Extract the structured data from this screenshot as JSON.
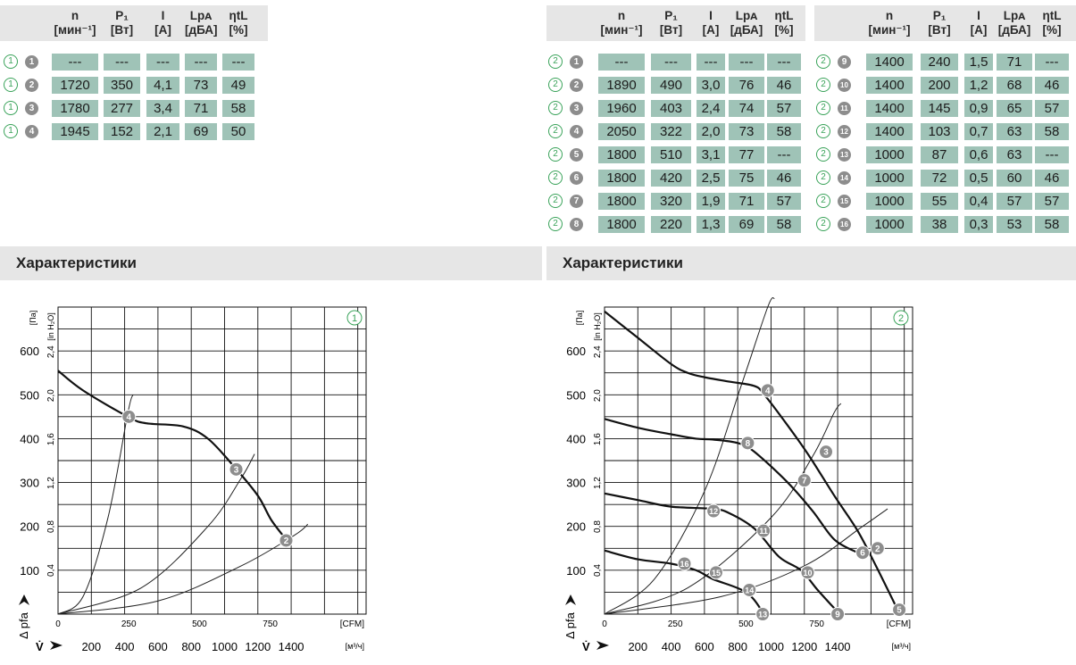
{
  "headers": [
    {
      "top": "n",
      "bottom": "[мин⁻¹]"
    },
    {
      "top": "P₁",
      "bottom": "[Вт]"
    },
    {
      "top": "I",
      "bottom": "[A]"
    },
    {
      "top": "Lpᴀ",
      "bottom": "[дБА]"
    },
    {
      "top": "ηtL",
      "bottom": "[%]"
    }
  ],
  "table1": {
    "rows": [
      {
        "curve": "1",
        "point": "1",
        "values": [
          "---",
          "---",
          "---",
          "---",
          "---"
        ]
      },
      {
        "curve": "1",
        "point": "2",
        "values": [
          "1720",
          "350",
          "4,1",
          "73",
          "49"
        ]
      },
      {
        "curve": "1",
        "point": "3",
        "values": [
          "1780",
          "277",
          "3,4",
          "71",
          "58"
        ]
      },
      {
        "curve": "1",
        "point": "4",
        "values": [
          "1945",
          "152",
          "2,1",
          "69",
          "50"
        ]
      }
    ]
  },
  "table2a": {
    "rows": [
      {
        "curve": "2",
        "point": "1",
        "values": [
          "---",
          "---",
          "---",
          "---",
          "---"
        ]
      },
      {
        "curve": "2",
        "point": "2",
        "values": [
          "1890",
          "490",
          "3,0",
          "76",
          "46"
        ]
      },
      {
        "curve": "2",
        "point": "3",
        "values": [
          "1960",
          "403",
          "2,4",
          "74",
          "57"
        ]
      },
      {
        "curve": "2",
        "point": "4",
        "values": [
          "2050",
          "322",
          "2,0",
          "73",
          "58"
        ]
      },
      {
        "curve": "2",
        "point": "5",
        "values": [
          "1800",
          "510",
          "3,1",
          "77",
          "---"
        ]
      },
      {
        "curve": "2",
        "point": "6",
        "values": [
          "1800",
          "420",
          "2,5",
          "75",
          "46"
        ]
      },
      {
        "curve": "2",
        "point": "7",
        "values": [
          "1800",
          "320",
          "1,9",
          "71",
          "57"
        ]
      },
      {
        "curve": "2",
        "point": "8",
        "values": [
          "1800",
          "220",
          "1,3",
          "69",
          "58"
        ]
      }
    ]
  },
  "table2b": {
    "rows": [
      {
        "curve": "2",
        "point": "9",
        "values": [
          "1400",
          "240",
          "1,5",
          "71",
          "---"
        ]
      },
      {
        "curve": "2",
        "point": "10",
        "values": [
          "1400",
          "200",
          "1,2",
          "68",
          "46"
        ]
      },
      {
        "curve": "2",
        "point": "11",
        "values": [
          "1400",
          "145",
          "0,9",
          "65",
          "57"
        ]
      },
      {
        "curve": "2",
        "point": "12",
        "values": [
          "1400",
          "103",
          "0,7",
          "63",
          "58"
        ]
      },
      {
        "curve": "2",
        "point": "13",
        "values": [
          "1000",
          "87",
          "0,6",
          "63",
          "---"
        ]
      },
      {
        "curve": "2",
        "point": "14",
        "values": [
          "1000",
          "72",
          "0,5",
          "60",
          "46"
        ]
      },
      {
        "curve": "2",
        "point": "15",
        "values": [
          "1000",
          "55",
          "0,4",
          "57",
          "57"
        ]
      },
      {
        "curve": "2",
        "point": "16",
        "values": [
          "1000",
          "38",
          "0,3",
          "53",
          "58"
        ]
      }
    ]
  },
  "section_left": "Характеристики",
  "section_right": "Характеристики",
  "colors": {
    "cell": "#9fc3b7",
    "header": "#e6e6e6",
    "curve_label": "#3aa35a",
    "point": "#8d8d8d"
  },
  "chart_data": [
    {
      "type": "line",
      "id": "1",
      "y_pa_ticks": [
        "100",
        "200",
        "300",
        "400",
        "500",
        "600"
      ],
      "y_pa_label": "[Па]",
      "y_in_ticks": [
        "0,4",
        "0,8",
        "1,2",
        "1,6",
        "2,0",
        "2,4"
      ],
      "y_in_label": "[in H₂O]",
      "x_cfm_ticks": [
        "0",
        "250",
        "500",
        "750"
      ],
      "x_cfm_label": "[CFM]",
      "x_m3_ticks": [
        "200",
        "400",
        "600",
        "800",
        "1000",
        "1200",
        "1400"
      ],
      "x_m3_label": "[м³/ч]",
      "y_axis_name": "Δ pfa",
      "x_axis_name": "V̇",
      "xlim_m3h": [
        0,
        1850
      ],
      "ylim_pa": [
        0,
        700
      ],
      "series": [
        {
          "x": [
            0,
            150,
            420,
            530,
            750,
            900,
            1060,
            1200,
            1280,
            1370
          ],
          "y": [
            555,
            510,
            450,
            435,
            428,
            400,
            335,
            270,
            215,
            170
          ]
        }
      ],
      "system_curves": [
        {
          "x": [
            0,
            150,
            300,
            420,
            450
          ],
          "y": [
            0,
            40,
            220,
            460,
            500
          ]
        },
        {
          "x": [
            0,
            500,
            900,
            1100,
            1180
          ],
          "y": [
            0,
            60,
            200,
            310,
            365
          ]
        },
        {
          "x": [
            0,
            600,
            1100,
            1420,
            1500
          ],
          "y": [
            0,
            30,
            110,
            180,
            205
          ]
        }
      ],
      "points": [
        {
          "label": "4",
          "x": 425,
          "y": 450
        },
        {
          "label": "3",
          "x": 1070,
          "y": 330
        },
        {
          "label": "2",
          "x": 1370,
          "y": 168
        }
      ]
    },
    {
      "type": "line",
      "id": "2",
      "y_pa_ticks": [
        "100",
        "200",
        "300",
        "400",
        "500",
        "600"
      ],
      "y_pa_label": "[Па]",
      "y_in_ticks": [
        "0,4",
        "0,8",
        "1,2",
        "1,6",
        "2,0",
        "2,4"
      ],
      "y_in_label": "[in H₂O]",
      "x_cfm_ticks": [
        "0",
        "250",
        "500",
        "750"
      ],
      "x_cfm_label": "[CFM]",
      "x_m3_ticks": [
        "200",
        "400",
        "600",
        "800",
        "1000",
        "1200",
        "1400"
      ],
      "x_m3_label": "[м³/ч]",
      "y_axis_name": "Δ pfa",
      "x_axis_name": "V̇",
      "xlim_m3h": [
        0,
        1850
      ],
      "ylim_pa": [
        0,
        700
      ],
      "series": [
        {
          "x": [
            0,
            200,
            400,
            500,
            600,
            750,
            900,
            960,
            1100,
            1230,
            1380,
            1520,
            1630,
            1760
          ],
          "y": [
            690,
            630,
            570,
            550,
            540,
            530,
            520,
            500,
            430,
            360,
            270,
            190,
            110,
            10
          ]
        },
        {
          "x": [
            0,
            200,
            400,
            550,
            650,
            800,
            900,
            1100,
            1250,
            1380,
            1520
          ],
          "y": [
            445,
            425,
            410,
            400,
            398,
            390,
            370,
            300,
            235,
            170,
            140
          ]
        },
        {
          "x": [
            0,
            200,
            400,
            650,
            750,
            900,
            1050,
            1180,
            1280,
            1400
          ],
          "y": [
            275,
            260,
            245,
            240,
            230,
            195,
            130,
            100,
            55,
            5
          ]
        },
        {
          "x": [
            0,
            200,
            400,
            550,
            650,
            850,
            950
          ],
          "y": [
            145,
            125,
            115,
            100,
            80,
            50,
            5
          ]
        }
      ],
      "system_curves": [
        {
          "x": [
            0,
            300,
            600,
            820,
            980,
            1020
          ],
          "y": [
            0,
            80,
            280,
            520,
            700,
            720
          ]
        },
        {
          "x": [
            0,
            500,
            1000,
            1250,
            1380,
            1420
          ],
          "y": [
            0,
            60,
            220,
            360,
            460,
            480
          ]
        },
        {
          "x": [
            0,
            700,
            1200,
            1550,
            1700
          ],
          "y": [
            0,
            40,
            110,
            200,
            240
          ]
        }
      ],
      "points": [
        {
          "label": "4",
          "x": 980,
          "y": 510
        },
        {
          "label": "3",
          "x": 1330,
          "y": 370
        },
        {
          "label": "2",
          "x": 1640,
          "y": 150
        },
        {
          "label": "5",
          "x": 1770,
          "y": 10
        },
        {
          "label": "8",
          "x": 860,
          "y": 390
        },
        {
          "label": "7",
          "x": 1200,
          "y": 305
        },
        {
          "label": "6",
          "x": 1550,
          "y": 140
        },
        {
          "label": "12",
          "x": 655,
          "y": 235
        },
        {
          "label": "11",
          "x": 955,
          "y": 190
        },
        {
          "label": "10",
          "x": 1220,
          "y": 95
        },
        {
          "label": "9",
          "x": 1400,
          "y": 0
        },
        {
          "label": "16",
          "x": 480,
          "y": 115
        },
        {
          "label": "15",
          "x": 670,
          "y": 95
        },
        {
          "label": "14",
          "x": 870,
          "y": 55
        },
        {
          "label": "13",
          "x": 950,
          "y": 0
        }
      ]
    }
  ]
}
